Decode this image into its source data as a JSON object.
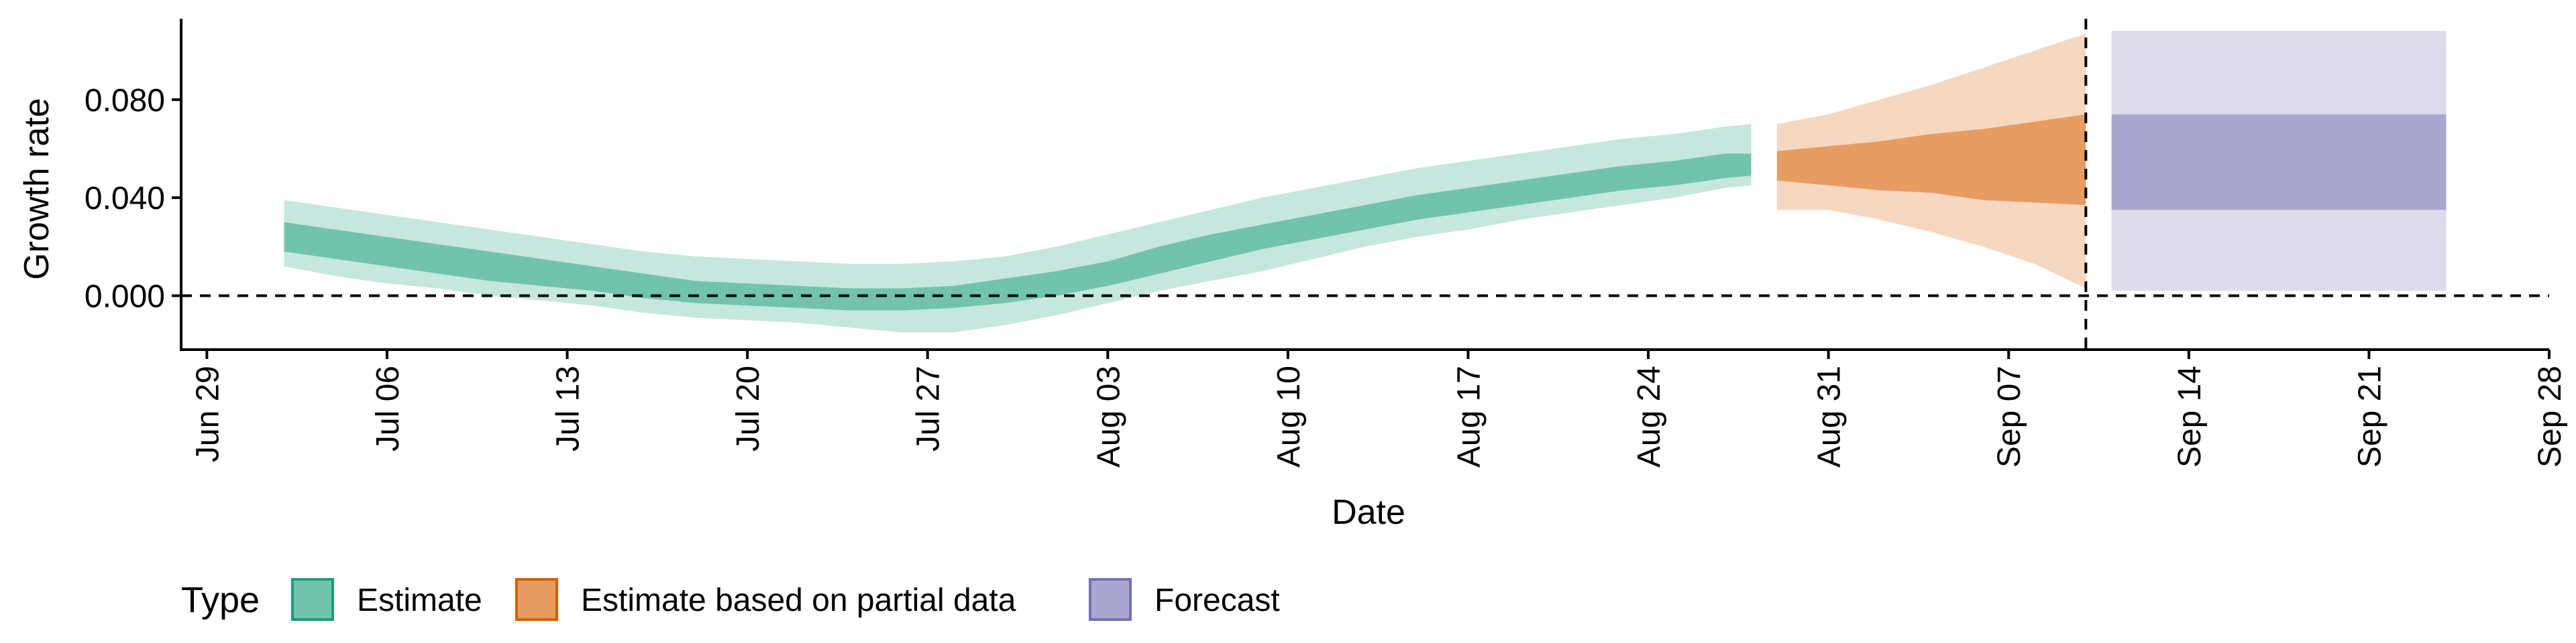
{
  "chart_data": {
    "type": "area",
    "xlabel": "Date",
    "ylabel": "Growth rate",
    "x_axis": {
      "type": "date",
      "range": [
        "2020-06-28",
        "2020-09-28"
      ],
      "ticks": [
        {
          "date": "2020-06-29",
          "label": "Jun 29"
        },
        {
          "date": "2020-07-06",
          "label": "Jul 06"
        },
        {
          "date": "2020-07-13",
          "label": "Jul 13"
        },
        {
          "date": "2020-07-20",
          "label": "Jul 20"
        },
        {
          "date": "2020-07-27",
          "label": "Jul 27"
        },
        {
          "date": "2020-08-03",
          "label": "Aug 03"
        },
        {
          "date": "2020-08-10",
          "label": "Aug 10"
        },
        {
          "date": "2020-08-17",
          "label": "Aug 17"
        },
        {
          "date": "2020-08-24",
          "label": "Aug 24"
        },
        {
          "date": "2020-08-31",
          "label": "Aug 31"
        },
        {
          "date": "2020-09-07",
          "label": "Sep 07"
        },
        {
          "date": "2020-09-14",
          "label": "Sep 14"
        },
        {
          "date": "2020-09-21",
          "label": "Sep 21"
        },
        {
          "date": "2020-09-28",
          "label": "Sep 28"
        }
      ]
    },
    "y_axis": {
      "range": [
        -0.022,
        0.113
      ],
      "ticks": [
        {
          "value": 0.0,
          "label": "0.000"
        },
        {
          "value": 0.04,
          "label": "0.040"
        },
        {
          "value": 0.08,
          "label": "0.080"
        }
      ]
    },
    "reference_lines": {
      "horizontal_y": 0,
      "vertical_date": "2020-09-10",
      "style": "dashed"
    },
    "legend": {
      "title": "Type",
      "position": "bottom",
      "entries": [
        {
          "label": "Estimate",
          "color": "#1b9e77"
        },
        {
          "label": "Estimate based on partial data",
          "color": "#d95f02"
        },
        {
          "label": "Forecast",
          "color": "#7570b3"
        }
      ]
    },
    "series": [
      {
        "name": "Estimate",
        "color": "#1b9e77",
        "x": [
          "2020-07-02",
          "2020-07-04",
          "2020-07-06",
          "2020-07-08",
          "2020-07-10",
          "2020-07-12",
          "2020-07-14",
          "2020-07-16",
          "2020-07-18",
          "2020-07-20",
          "2020-07-22",
          "2020-07-24",
          "2020-07-26",
          "2020-07-28",
          "2020-07-30",
          "2020-08-01",
          "2020-08-03",
          "2020-08-05",
          "2020-08-07",
          "2020-08-09",
          "2020-08-11",
          "2020-08-13",
          "2020-08-15",
          "2020-08-17",
          "2020-08-19",
          "2020-08-21",
          "2020-08-23",
          "2020-08-25",
          "2020-08-27",
          "2020-08-28"
        ],
        "lower_90": [
          0.012,
          0.008,
          0.005,
          0.003,
          0.0,
          -0.002,
          -0.004,
          -0.007,
          -0.009,
          -0.01,
          -0.011,
          -0.013,
          -0.015,
          -0.015,
          -0.012,
          -0.008,
          -0.003,
          0.002,
          0.006,
          0.01,
          0.015,
          0.02,
          0.024,
          0.027,
          0.031,
          0.034,
          0.037,
          0.04,
          0.044,
          0.045
        ],
        "lower_50": [
          0.018,
          0.015,
          0.012,
          0.009,
          0.006,
          0.004,
          0.002,
          -0.001,
          -0.003,
          -0.004,
          -0.005,
          -0.006,
          -0.006,
          -0.005,
          -0.003,
          0.0,
          0.004,
          0.009,
          0.014,
          0.019,
          0.023,
          0.027,
          0.031,
          0.034,
          0.037,
          0.04,
          0.043,
          0.045,
          0.048,
          0.049
        ],
        "upper_50": [
          0.03,
          0.027,
          0.024,
          0.021,
          0.018,
          0.015,
          0.012,
          0.009,
          0.006,
          0.005,
          0.004,
          0.003,
          0.003,
          0.004,
          0.007,
          0.01,
          0.014,
          0.02,
          0.025,
          0.029,
          0.033,
          0.037,
          0.041,
          0.044,
          0.047,
          0.05,
          0.053,
          0.055,
          0.058,
          0.058
        ],
        "upper_90": [
          0.039,
          0.036,
          0.033,
          0.03,
          0.027,
          0.024,
          0.021,
          0.018,
          0.016,
          0.015,
          0.014,
          0.013,
          0.013,
          0.014,
          0.016,
          0.02,
          0.025,
          0.03,
          0.035,
          0.04,
          0.044,
          0.048,
          0.052,
          0.055,
          0.058,
          0.061,
          0.064,
          0.066,
          0.069,
          0.07
        ]
      },
      {
        "name": "Estimate based on partial data",
        "color": "#d95f02",
        "x": [
          "2020-08-29",
          "2020-08-31",
          "2020-09-02",
          "2020-09-04",
          "2020-09-06",
          "2020-09-08",
          "2020-09-10"
        ],
        "lower_90": [
          0.035,
          0.035,
          0.031,
          0.026,
          0.02,
          0.013,
          0.003
        ],
        "lower_50": [
          0.047,
          0.045,
          0.043,
          0.042,
          0.039,
          0.038,
          0.037
        ],
        "upper_50": [
          0.059,
          0.061,
          0.063,
          0.066,
          0.068,
          0.071,
          0.074
        ],
        "upper_90": [
          0.07,
          0.074,
          0.08,
          0.086,
          0.093,
          0.1,
          0.107
        ]
      },
      {
        "name": "Forecast",
        "color": "#7570b3",
        "x": [
          "2020-09-11",
          "2020-09-24"
        ],
        "lower_90": [
          0.002,
          0.002
        ],
        "lower_50": [
          0.035,
          0.035
        ],
        "upper_50": [
          0.074,
          0.074
        ],
        "upper_90": [
          0.108,
          0.108
        ]
      }
    ]
  }
}
